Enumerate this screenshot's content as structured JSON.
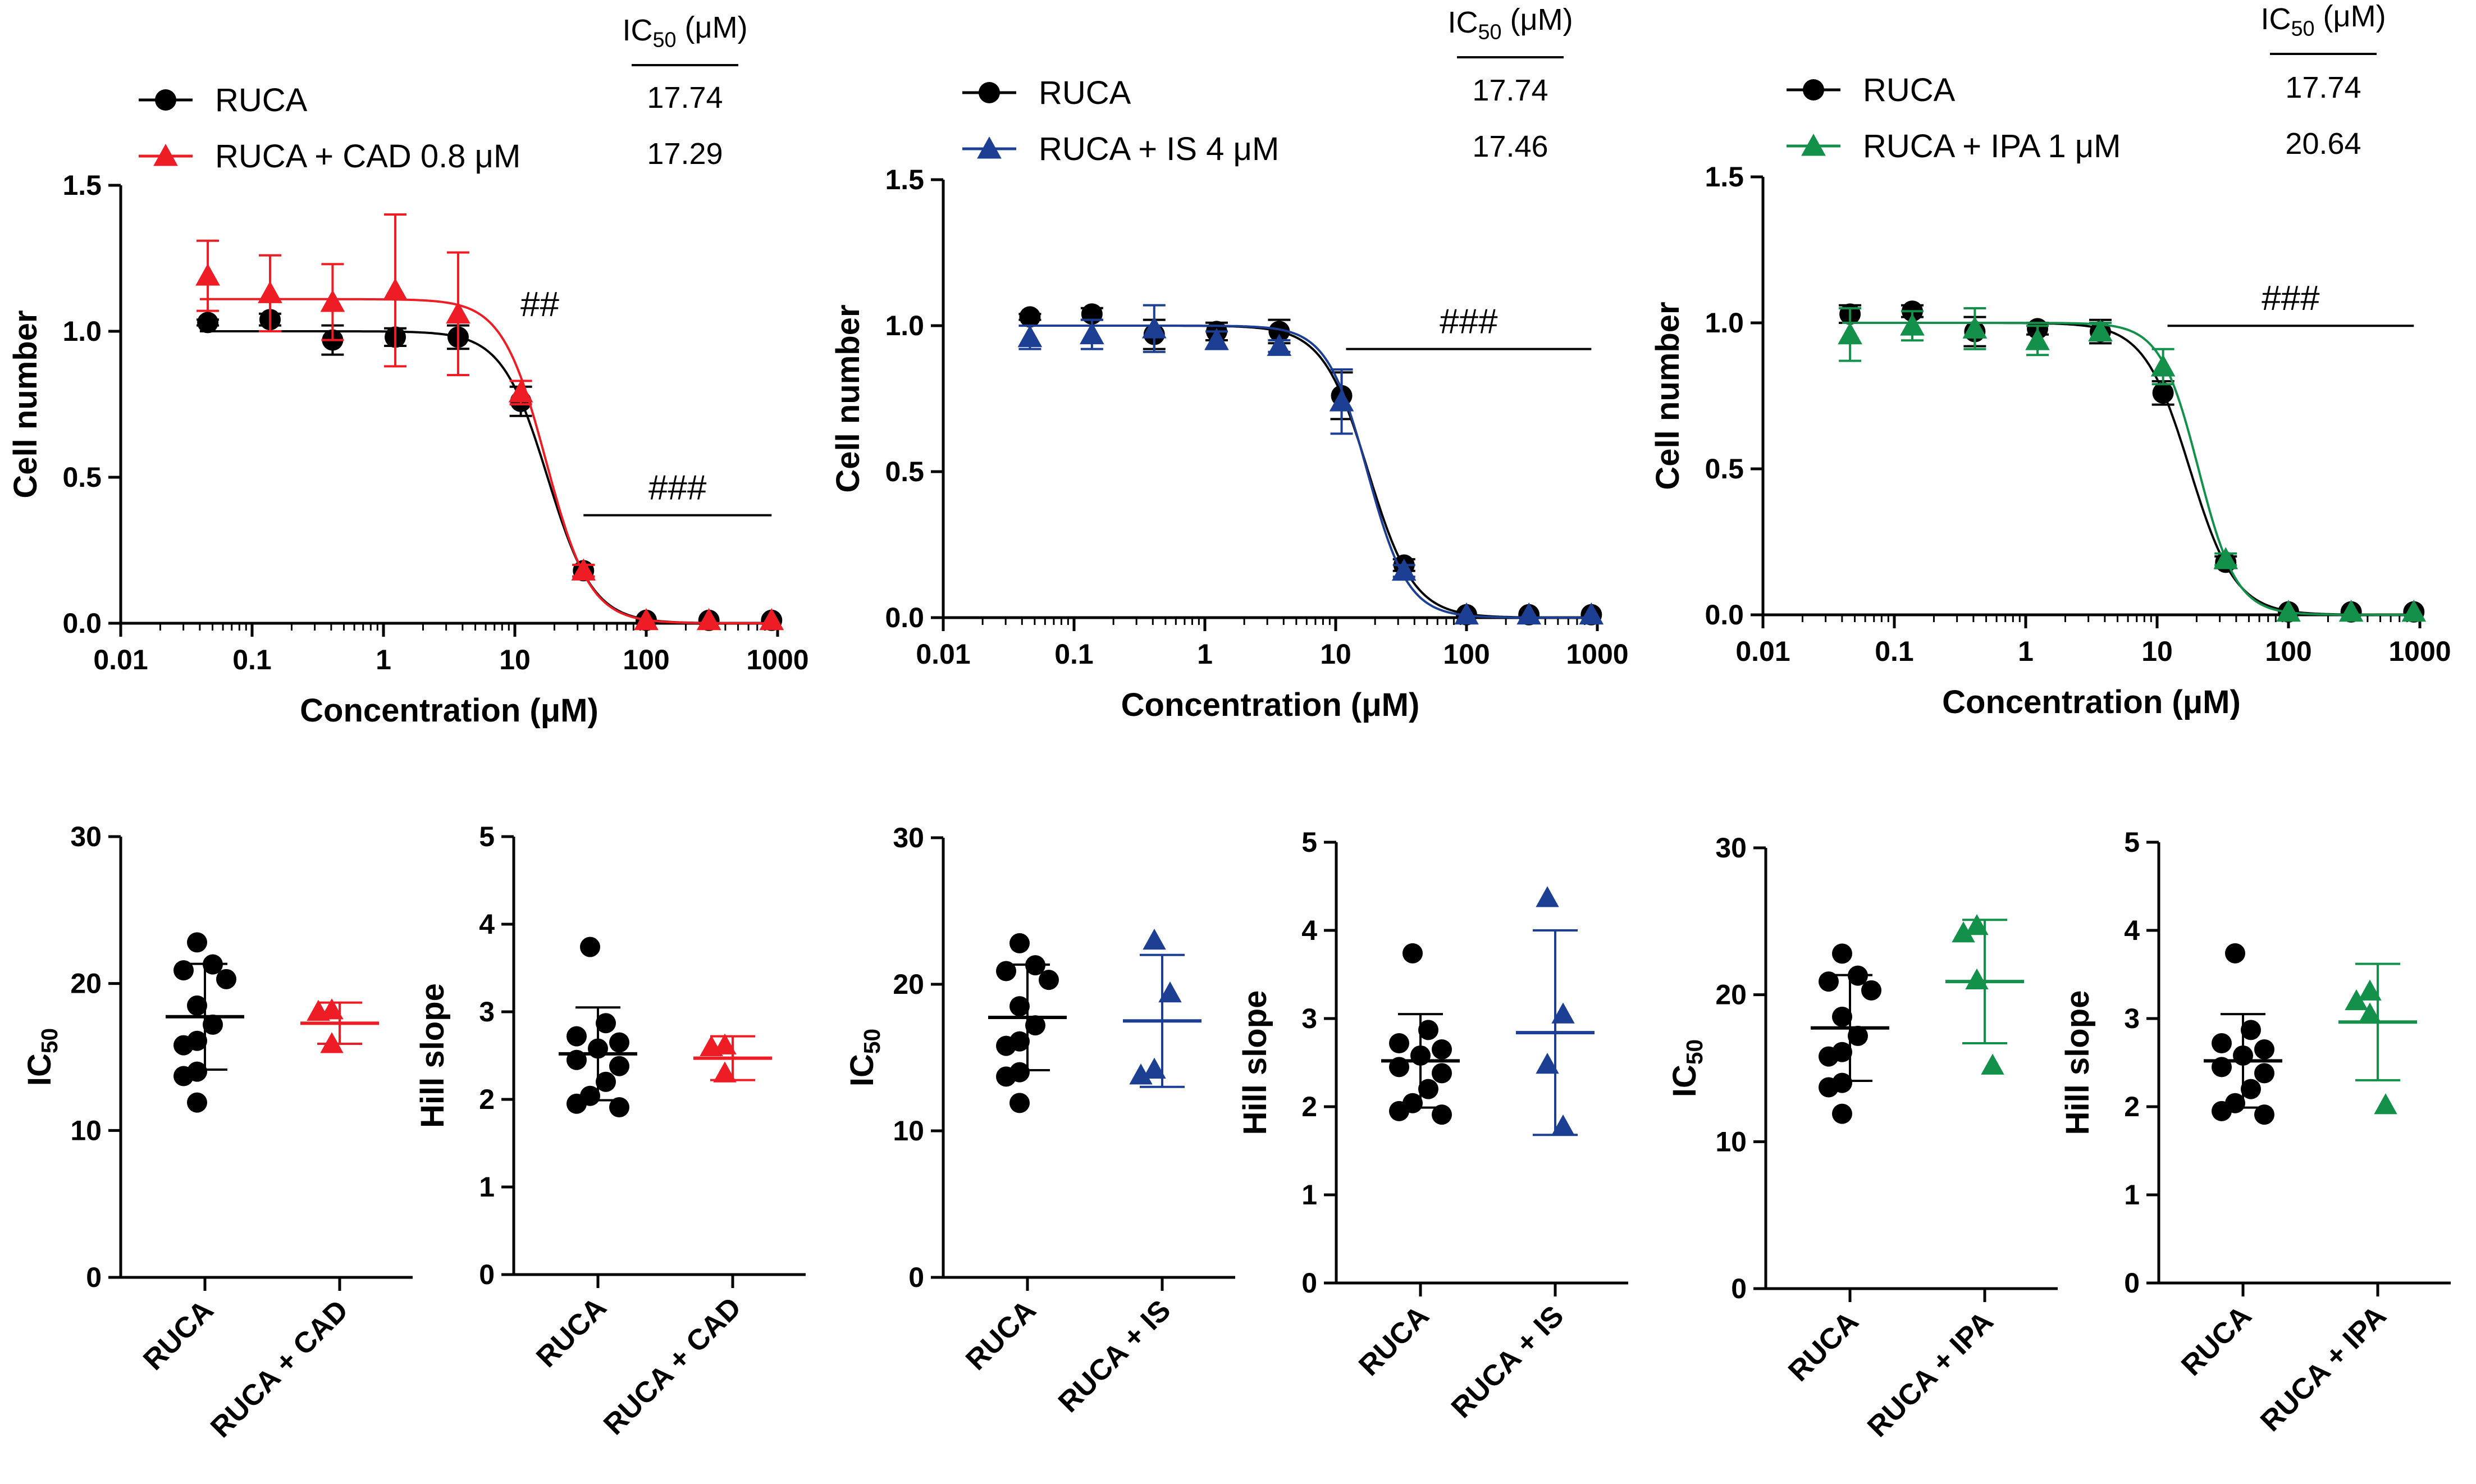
{
  "chart_data": [
    {
      "panel": "A",
      "type": "dose-response",
      "xlabel": "Concentration (μM)",
      "ylabel": "Cell number",
      "xscale": "log",
      "xlim": [
        0.01,
        1000
      ],
      "ylim": [
        0,
        1.5
      ],
      "x_ticks": [
        "0.01",
        "0.1",
        "1",
        "10",
        "100",
        "1000"
      ],
      "y_ticks": [
        "0.0",
        "0.5",
        "1.0",
        "1.5"
      ],
      "ic50_header": "IC50 (μM)",
      "series": [
        {
          "name": "RUCA",
          "color": "#000000",
          "marker": "circle",
          "x": [
            0.046,
            0.137,
            0.41,
            1.23,
            3.7,
            11.1,
            33.3,
            100,
            300,
            900
          ],
          "y": [
            1.03,
            1.04,
            0.97,
            0.98,
            0.98,
            0.76,
            0.18,
            0.01,
            0.01,
            0.01
          ],
          "err": [
            0.01,
            0.02,
            0.05,
            0.03,
            0.04,
            0.05,
            0.02,
            0.0,
            0.0,
            0.0
          ],
          "ic50": 17.74,
          "hill": 2.5,
          "ic50_label": "17.74"
        },
        {
          "name": "RUCA + CAD 0.8 μM",
          "color": "#ee1c24",
          "marker": "triangle",
          "x": [
            0.046,
            0.137,
            0.41,
            1.23,
            3.7,
            11.1,
            33.3,
            100,
            300,
            900
          ],
          "y": [
            1.19,
            1.13,
            1.1,
            1.14,
            1.06,
            0.79,
            0.18,
            0.01,
            0.01,
            0.01
          ],
          "err": [
            0.12,
            0.13,
            0.13,
            0.26,
            0.21,
            0.04,
            0.02,
            0.0,
            0.0,
            0.0
          ],
          "ic50": 17.29,
          "hill": 2.6,
          "top": 1.11,
          "ic50_label": "17.29"
        }
      ],
      "annotations": [
        {
          "text": "##",
          "x": [
            10,
            10
          ],
          "y": 1.09
        },
        {
          "text": "###",
          "x": [
            33.3,
            900
          ],
          "y": 0.37
        }
      ]
    },
    {
      "panel": "B",
      "type": "dose-response",
      "xlabel": "Concentration (μM)",
      "ylabel": "Cell number",
      "xscale": "log",
      "xlim": [
        0.01,
        1000
      ],
      "ylim": [
        0,
        1.5
      ],
      "x_ticks": [
        "0.01",
        "0.1",
        "1",
        "10",
        "100",
        "1000"
      ],
      "y_ticks": [
        "0.0",
        "0.5",
        "1.0",
        "1.5"
      ],
      "ic50_header": "IC50 (μM)",
      "series": [
        {
          "name": "RUCA",
          "color": "#000000",
          "marker": "circle",
          "x": [
            0.046,
            0.137,
            0.41,
            1.23,
            3.7,
            11.1,
            33.3,
            100,
            300,
            900
          ],
          "y": [
            1.03,
            1.04,
            0.97,
            0.98,
            0.98,
            0.76,
            0.18,
            0.01,
            0.01,
            0.01
          ],
          "err": [
            0.01,
            0.02,
            0.05,
            0.03,
            0.04,
            0.08,
            0.02,
            0.0,
            0.0,
            0.0
          ],
          "ic50": 17.74,
          "hill": 2.5,
          "ic50_label": "17.74"
        },
        {
          "name": "RUCA + IS 4 μM",
          "color": "#1c3f94",
          "marker": "triangle",
          "x": [
            0.046,
            0.137,
            0.41,
            1.23,
            3.7,
            11.1,
            33.3,
            100,
            300,
            900
          ],
          "y": [
            0.96,
            0.97,
            0.99,
            0.95,
            0.93,
            0.74,
            0.16,
            0.01,
            0.01,
            0.01
          ],
          "err": [
            0.04,
            0.05,
            0.08,
            0.03,
            0.02,
            0.11,
            0.02,
            0.0,
            0.0,
            0.0
          ],
          "ic50": 17.46,
          "hill": 2.8,
          "ic50_label": "17.46"
        }
      ],
      "annotations": [
        {
          "text": "###",
          "x": [
            12,
            900
          ],
          "y": 0.92
        }
      ]
    },
    {
      "panel": "C",
      "type": "dose-response",
      "xlabel": "Concentration (μM)",
      "ylabel": "Cell number",
      "xscale": "log",
      "xlim": [
        0.01,
        1000
      ],
      "ylim": [
        0,
        1.5
      ],
      "x_ticks": [
        "0.01",
        "0.1",
        "1",
        "10",
        "100",
        "1000"
      ],
      "y_ticks": [
        "0.0",
        "0.5",
        "1.0",
        "1.5"
      ],
      "ic50_header": "IC50 (μM)",
      "series": [
        {
          "name": "RUCA",
          "color": "#000000",
          "marker": "circle",
          "x": [
            0.046,
            0.137,
            0.41,
            1.23,
            3.7,
            11.1,
            33.3,
            100,
            300,
            900
          ],
          "y": [
            1.03,
            1.04,
            0.97,
            0.98,
            0.97,
            0.76,
            0.18,
            0.01,
            0.01,
            0.01
          ],
          "err": [
            0.03,
            0.02,
            0.05,
            0.02,
            0.04,
            0.04,
            0.02,
            0.0,
            0.0,
            0.0
          ],
          "ic50": 17.74,
          "hill": 2.5,
          "ic50_label": "17.74"
        },
        {
          "name": "RUCA + IPA 1 μM",
          "color": "#13904a",
          "marker": "triangle",
          "x": [
            0.046,
            0.137,
            0.41,
            1.23,
            3.7,
            11.1,
            33.3,
            100,
            300,
            900
          ],
          "y": [
            0.96,
            0.99,
            0.98,
            0.94,
            0.97,
            0.85,
            0.19,
            0.01,
            0.01,
            0.01
          ],
          "err": [
            0.09,
            0.05,
            0.07,
            0.05,
            0.03,
            0.06,
            0.02,
            0.0,
            0.0,
            0.0
          ],
          "ic50": 20.64,
          "hill": 3.0,
          "ic50_label": "20.64"
        }
      ],
      "annotations": [
        {
          "text": "###",
          "x": [
            12,
            900
          ],
          "y": 0.99
        }
      ]
    },
    {
      "panel": "D1",
      "type": "scatter-dot",
      "ylabel": "IC50",
      "ylim": [
        0,
        30
      ],
      "y_ticks": [
        "0",
        "10",
        "20",
        "30"
      ],
      "groups": [
        {
          "name": "RUCA",
          "color": "#000000",
          "marker": "circle",
          "values": [
            22.8,
            21.3,
            20.9,
            20.3,
            18.5,
            17.2,
            16.1,
            15.8,
            14.0,
            13.7,
            11.9
          ],
          "mean": 17.74,
          "sd": 3.6
        },
        {
          "name": "RUCA + CAD",
          "color": "#ee1c24",
          "marker": "triangle",
          "values": [
            18.2,
            18.1,
            15.9
          ],
          "mean": 17.3,
          "sd": 1.4
        }
      ]
    },
    {
      "panel": "D2",
      "type": "scatter-dot",
      "ylabel": "Hill slope",
      "ylim": [
        0,
        5
      ],
      "y_ticks": [
        "0",
        "1",
        "2",
        "3",
        "4",
        "5"
      ],
      "groups": [
        {
          "name": "RUCA",
          "color": "#000000",
          "marker": "circle",
          "values": [
            3.74,
            2.87,
            2.72,
            2.65,
            2.58,
            2.45,
            2.38,
            2.2,
            2.04,
            1.95,
            1.91
          ],
          "mean": 2.52,
          "sd": 0.53
        },
        {
          "name": "RUCA + CAD",
          "color": "#ee1c24",
          "marker": "triangle",
          "values": [
            2.62,
            2.6,
            2.3
          ],
          "mean": 2.47,
          "sd": 0.25
        }
      ]
    },
    {
      "panel": "E1",
      "type": "scatter-dot",
      "ylabel": "IC50",
      "ylim": [
        0,
        30
      ],
      "y_ticks": [
        "0",
        "10",
        "20",
        "30"
      ],
      "groups": [
        {
          "name": "RUCA",
          "color": "#000000",
          "marker": "circle",
          "values": [
            22.8,
            21.3,
            20.9,
            20.3,
            18.5,
            17.2,
            16.1,
            15.8,
            14.0,
            13.7,
            11.9
          ],
          "mean": 17.74,
          "sd": 3.6
        },
        {
          "name": "RUCA + IS",
          "color": "#1c3f94",
          "marker": "triangle",
          "values": [
            23.0,
            19.4,
            14.2,
            13.8
          ],
          "mean": 17.5,
          "sd": 4.5
        }
      ]
    },
    {
      "panel": "E2",
      "type": "scatter-dot",
      "ylabel": "Hill slope",
      "ylim": [
        0,
        5
      ],
      "y_ticks": [
        "0",
        "1",
        "2",
        "3",
        "4",
        "5"
      ],
      "groups": [
        {
          "name": "RUCA",
          "color": "#000000",
          "marker": "circle",
          "values": [
            3.74,
            2.87,
            2.72,
            2.65,
            2.58,
            2.45,
            2.38,
            2.2,
            2.04,
            1.95,
            1.91
          ],
          "mean": 2.52,
          "sd": 0.53
        },
        {
          "name": "RUCA + IS",
          "color": "#1c3f94",
          "marker": "triangle",
          "values": [
            4.37,
            3.05,
            2.48,
            1.78
          ],
          "mean": 2.84,
          "sd": 1.16
        }
      ]
    },
    {
      "panel": "F1",
      "type": "scatter-dot",
      "ylabel": "IC50",
      "ylim": [
        0,
        30
      ],
      "y_ticks": [
        "0",
        "10",
        "20",
        "30"
      ],
      "groups": [
        {
          "name": "RUCA",
          "color": "#000000",
          "marker": "circle",
          "values": [
            22.8,
            21.3,
            20.9,
            20.3,
            18.5,
            17.2,
            16.1,
            15.8,
            14.0,
            13.7,
            11.9
          ],
          "mean": 17.74,
          "sd": 3.6
        },
        {
          "name": "RUCA + IPA",
          "color": "#13904a",
          "marker": "triangle",
          "values": [
            24.7,
            24.2,
            21.0,
            15.2
          ],
          "mean": 20.9,
          "sd": 4.2
        }
      ]
    },
    {
      "panel": "F2",
      "type": "scatter-dot",
      "ylabel": "Hill slope",
      "ylim": [
        0,
        5
      ],
      "y_ticks": [
        "0",
        "1",
        "2",
        "3",
        "4",
        "5"
      ],
      "groups": [
        {
          "name": "RUCA",
          "color": "#000000",
          "marker": "circle",
          "values": [
            3.74,
            2.87,
            2.72,
            2.65,
            2.58,
            2.45,
            2.38,
            2.2,
            2.04,
            1.95,
            1.91
          ],
          "mean": 2.52,
          "sd": 0.53
        },
        {
          "name": "RUCA + IPA",
          "color": "#13904a",
          "marker": "triangle",
          "values": [
            3.31,
            3.2,
            3.05,
            2.02
          ],
          "mean": 2.96,
          "sd": 0.66
        }
      ]
    }
  ]
}
